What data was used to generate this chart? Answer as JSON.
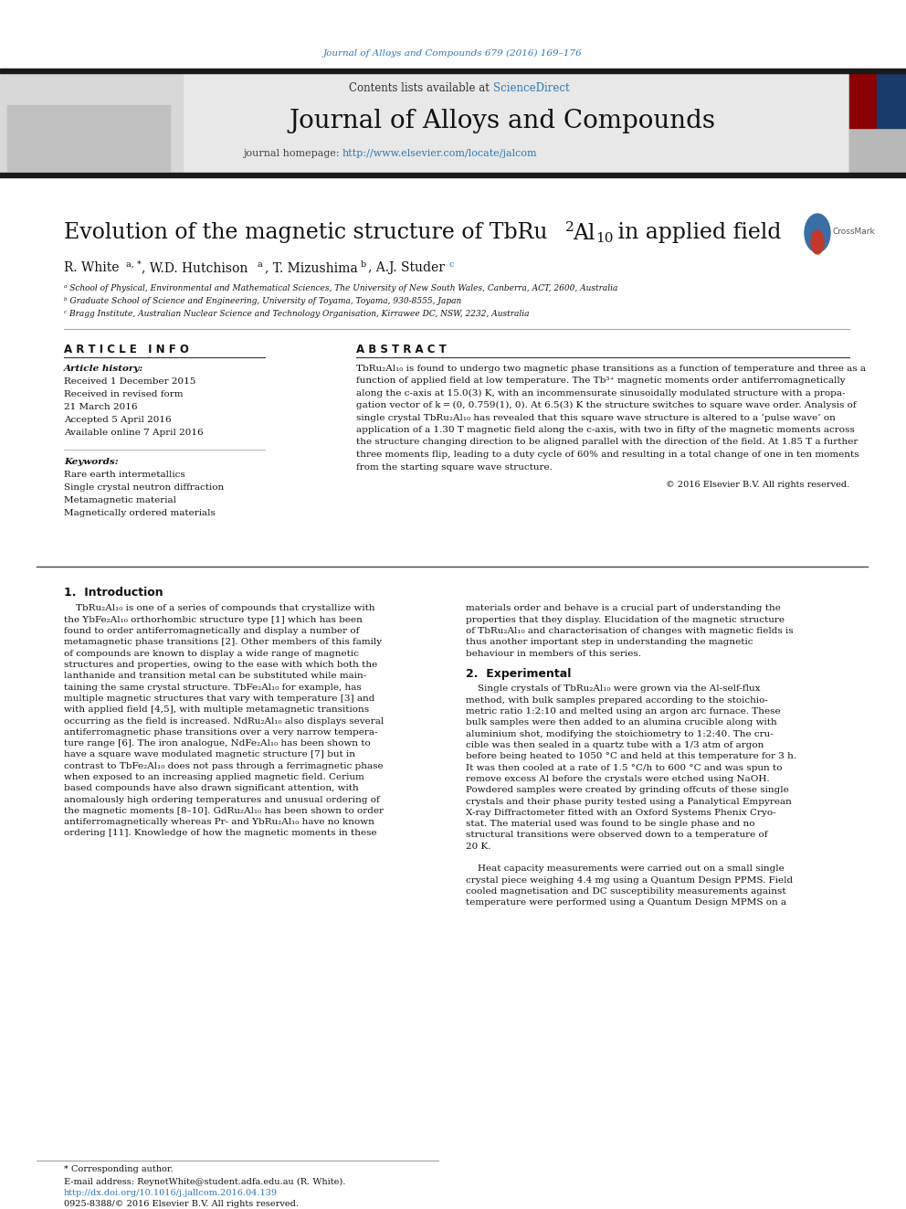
{
  "page_title": "Journal of Alloys and Compounds 679 (2016) 169–176",
  "journal_name": "Journal of Alloys and Compounds",
  "journal_homepage": "http://www.elsevier.com/locate/jalcom",
  "science_direct_text": "Contents lists available at ScienceDirect",
  "affil_a": "ᵃ School of Physical, Environmental and Mathematical Sciences, The University of New South Wales, Canberra, ACT, 2600, Australia",
  "affil_b": "ᵇ Graduate School of Science and Engineering, University of Toyama, Toyama, 930-8555, Japan",
  "affil_c": "ᶜ Bragg Institute, Australian Nuclear Science and Technology Organisation, Kirrawee DC, NSW, 2232, Australia",
  "article_info_header": "A R T I C L E   I N F O",
  "abstract_header": "A B S T R A C T",
  "article_history_label": "Article history:",
  "received": "Received 1 December 2015",
  "accepted": "Accepted 5 April 2016",
  "available": "Available online 7 April 2016",
  "keywords_label": "Keywords:",
  "keywords": [
    "Rare earth intermetallics",
    "Single crystal neutron diffraction",
    "Metamagnetic material",
    "Magnetically ordered materials"
  ],
  "copyright": "© 2016 Elsevier B.V. All rights reserved.",
  "footer_note": "* Corresponding author.",
  "footer_email": "E-mail address: ReynetWhite@student.adfa.edu.au (R. White).",
  "footer_doi": "http://dx.doi.org/10.1016/j.jallcom.2016.04.139",
  "footer_issn": "0925-8388/© 2016 Elsevier B.V. All rights reserved.",
  "bg_color": "#ffffff",
  "header_bg": "#e8e8e8",
  "black_bar_color": "#1a1a1a",
  "title_color": "#2c78b4",
  "elsevier_orange": "#e87722",
  "link_color": "#2c78b4",
  "text_color": "#000000",
  "abstract_lines": [
    "TbRu₂Al₁₀ is found to undergo two magnetic phase transitions as a function of temperature and three as a",
    "function of applied field at low temperature. The Tb³⁺ magnetic moments order antiferromagnetically",
    "along the c-axis at 15.0(3) K, with an incommensurate sinusoidally modulated structure with a propa-",
    "gation vector of k = (0, 0.759(1), 0). At 6.5(3) K the structure switches to square wave order. Analysis of",
    "single crystal TbRu₂Al₁₀ has revealed that this square wave structure is altered to a ‘pulse wave’ on",
    "application of a 1.30 T magnetic field along the c-axis, with two in fifty of the magnetic moments across",
    "the structure changing direction to be aligned parallel with the direction of the field. At 1.85 T a further",
    "three moments flip, leading to a duty cycle of 60% and resulting in a total change of one in ten moments",
    "from the starting square wave structure."
  ],
  "intro_left_lines": [
    "    TbRu₂Al₁₀ is one of a series of compounds that crystallize with",
    "the YbFe₂Al₁₀ orthorhombic structure type [1] which has been",
    "found to order antiferromagnetically and display a number of",
    "metamagnetic phase transitions [2]. Other members of this family",
    "of compounds are known to display a wide range of magnetic",
    "structures and properties, owing to the ease with which both the",
    "lanthanide and transition metal can be substituted while main-",
    "taining the same crystal structure. TbFe₂Al₁₀ for example, has",
    "multiple magnetic structures that vary with temperature [3] and",
    "with applied field [4,5], with multiple metamagnetic transitions",
    "occurring as the field is increased. NdRu₂Al₁₀ also displays several",
    "antiferromagnetic phase transitions over a very narrow tempera-",
    "ture range [6]. The iron analogue, NdFe₂Al₁₀ has been shown to",
    "have a square wave modulated magnetic structure [7] but in",
    "contrast to TbFe₂Al₁₀ does not pass through a ferrimagnetic phase",
    "when exposed to an increasing applied magnetic field. Cerium",
    "based compounds have also drawn significant attention, with",
    "anomalously high ordering temperatures and unusual ordering of",
    "the magnetic moments [8–10]. GdRu₂Al₁₀ has been shown to order",
    "antiferromagnetically whereas Pr- and YbRu₂Al₁₀ have no known",
    "ordering [11]. Knowledge of how the magnetic moments in these"
  ],
  "intro_right_lines": [
    "materials order and behave is a crucial part of understanding the",
    "properties that they display. Elucidation of the magnetic structure",
    "of TbRu₂Al₁₀ and characterisation of changes with magnetic fields is",
    "thus another important step in understanding the magnetic",
    "behaviour in members of this series."
  ],
  "experimental_lines": [
    "    Single crystals of TbRu₂Al₁₀ were grown via the Al-self-flux",
    "method, with bulk samples prepared according to the stoichio-",
    "metric ratio 1:2:10 and melted using an argon arc furnace. These",
    "bulk samples were then added to an alumina crucible along with",
    "aluminium shot, modifying the stoichiometry to 1:2:40. The cru-",
    "cible was then sealed in a quartz tube with a 1/3 atm of argon",
    "before being heated to 1050 °C and held at this temperature for 3 h.",
    "It was then cooled at a rate of 1.5 °C/h to 600 °C and was spun to",
    "remove excess Al before the crystals were etched using NaOH.",
    "Powdered samples were created by grinding offcuts of these single",
    "crystals and their phase purity tested using a Panalytical Empyrean",
    "X-ray Diffractometer fitted with an Oxford Systems Phenix Cryo-",
    "stat. The material used was found to be single phase and no",
    "structural transitions were observed down to a temperature of",
    "20 K."
  ],
  "experimental_lines2": [
    "    Heat capacity measurements were carried out on a small single",
    "crystal piece weighing 4.4 mg using a Quantum Design PPMS. Field",
    "cooled magnetisation and DC susceptibility measurements against",
    "temperature were performed using a Quantum Design MPMS on a"
  ]
}
